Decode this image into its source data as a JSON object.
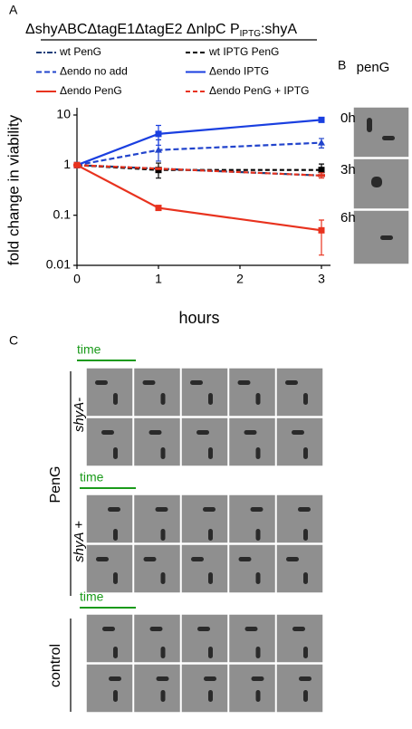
{
  "chart_data": {
    "type": "line",
    "title": [
      "ΔshyABCΔtagE1ΔtagE2 ΔnlpC P",
      "IPTG",
      ":shyA"
    ],
    "x": [
      0,
      1,
      3
    ],
    "xlim": [
      0,
      3
    ],
    "xticks": [
      0,
      1,
      2,
      3
    ],
    "ylim": [
      0.01,
      10
    ],
    "yticks": [
      0.01,
      0.1,
      1,
      10
    ],
    "log_y": true,
    "xlabel": "hours",
    "ylabel": "fold change in viability",
    "series": [
      {
        "name": "wt PenG",
        "color": "#1f3f7a",
        "dash": "6 2 2 2",
        "marker": "dash",
        "values": [
          1,
          0.85,
          0.62
        ],
        "errors": [
          null,
          null,
          null
        ]
      },
      {
        "name": "wt IPTG PenG",
        "color": "#000000",
        "dash": "5 3",
        "marker": "square",
        "values": [
          1,
          0.8,
          0.8
        ],
        "errors": [
          null,
          [
            0.55,
            1.1
          ],
          [
            0.6,
            1.05
          ]
        ]
      },
      {
        "name": "Δendo no add",
        "color": "#2244cc",
        "dash": "6 3",
        "marker": "triangle",
        "values": [
          1,
          2,
          2.8
        ],
        "errors": [
          null,
          [
            1.2,
            3.2
          ],
          [
            2.2,
            3.4
          ]
        ]
      },
      {
        "name": "Δendo IPTG",
        "color": "#1a3fe0",
        "dash": "",
        "marker": "square",
        "values": [
          1,
          4.2,
          8
        ],
        "errors": [
          null,
          [
            2.5,
            6.2
          ],
          null
        ]
      },
      {
        "name": "Δendo PenG",
        "color": "#e8321e",
        "dash": "",
        "marker": "square",
        "values": [
          1,
          0.14,
          0.05
        ],
        "errors": [
          null,
          null,
          [
            0.016,
            0.08
          ]
        ]
      },
      {
        "name": "Δendo PenG + IPTG",
        "color": "#e8321e",
        "dash": "5 3",
        "marker": "dash",
        "values": [
          1,
          0.85,
          0.62
        ],
        "errors": [
          null,
          null,
          [
            0.55,
            0.7
          ]
        ]
      }
    ]
  },
  "panels": {
    "a": "A",
    "b": "B",
    "c": "C"
  },
  "panel_b": {
    "title": "penG",
    "rows": [
      "0h",
      "3h",
      "6h"
    ]
  },
  "panel_c": {
    "time": [
      "time",
      "time",
      "time"
    ],
    "treatment": "PenG",
    "strains": [
      "shyA-",
      "shyA +"
    ],
    "control": "control"
  }
}
